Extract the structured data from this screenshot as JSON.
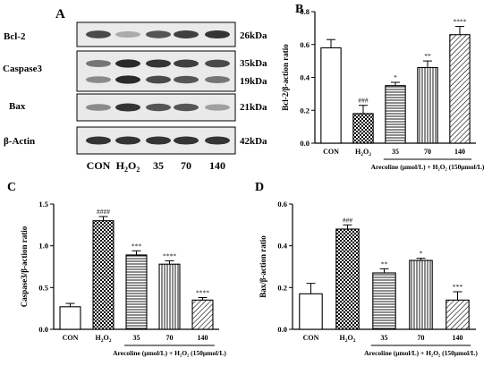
{
  "panel_a": {
    "letter": "A",
    "bands": [
      {
        "label": "Bcl-2",
        "size": "26kDa",
        "rows": 1
      },
      {
        "label": "Caspase3",
        "sizes": [
          "35kDa",
          "19kDa"
        ],
        "rows": 2
      },
      {
        "label": "Bax",
        "size": "21kDa",
        "rows": 1
      },
      {
        "label": "β-Actin",
        "size": "42kDa",
        "rows": 1
      }
    ],
    "lanes": [
      {
        "main": "CON",
        "sub": ""
      },
      {
        "main": "H",
        "sub": "2",
        "mid": "O",
        "sub2": "2"
      },
      {
        "main": "35"
      },
      {
        "main": "70"
      },
      {
        "main": "140"
      }
    ],
    "lane_positions": [
      110,
      143,
      177,
      208,
      243
    ],
    "intensity": {
      "bcl2": [
        0.75,
        0.3,
        0.7,
        0.8,
        0.85
      ],
      "casp35": [
        0.55,
        0.9,
        0.85,
        0.8,
        0.75
      ],
      "casp19": [
        0.45,
        0.9,
        0.75,
        0.7,
        0.55
      ],
      "bax": [
        0.45,
        0.85,
        0.7,
        0.7,
        0.35
      ],
      "actin": [
        0.85,
        0.85,
        0.85,
        0.85,
        0.85
      ]
    }
  },
  "chart_data": [
    {
      "panel": "B",
      "type": "bar",
      "ylabel": "Bcl-2/β-action ratio",
      "ylim": [
        0,
        0.8
      ],
      "yticks": [
        "0.0",
        "0.2",
        "0.4",
        "0.6",
        "0.8"
      ],
      "categories": [
        "CON",
        "H2O2",
        "35",
        "70",
        "140"
      ],
      "values": [
        0.58,
        0.18,
        0.35,
        0.46,
        0.66
      ],
      "errors": [
        0.05,
        0.05,
        0.02,
        0.04,
        0.05
      ],
      "sig": [
        "",
        "###",
        "*",
        "**",
        "****"
      ],
      "xnote": "Arecoline (μmol/L) + H₂O₂ (150μmol/L)"
    },
    {
      "panel": "C",
      "type": "bar",
      "ylabel": "Caspase3/β-action ratio",
      "ylim": [
        0,
        1.5
      ],
      "yticks": [
        "0.0",
        "0.5",
        "1.0",
        "1.5"
      ],
      "categories": [
        "CON",
        "H2O2",
        "35",
        "70",
        "140"
      ],
      "values": [
        0.27,
        1.3,
        0.89,
        0.78,
        0.35
      ],
      "errors": [
        0.04,
        0.05,
        0.05,
        0.04,
        0.03
      ],
      "sig": [
        "",
        "####",
        "***",
        "****",
        "****"
      ],
      "xnote": "Arecoline (μmol/L) + H₂O₂ (150μmol/L)"
    },
    {
      "panel": "D",
      "type": "bar",
      "ylabel": "Bax/β-action ratio",
      "ylim": [
        0,
        0.6
      ],
      "yticks": [
        "0.0",
        "0.2",
        "0.4",
        "0.6"
      ],
      "categories": [
        "CON",
        "H2O2",
        "35",
        "70",
        "140"
      ],
      "values": [
        0.17,
        0.48,
        0.27,
        0.33,
        0.14
      ],
      "errors": [
        0.05,
        0.02,
        0.02,
        0.01,
        0.04
      ],
      "sig": [
        "",
        "###",
        "**",
        "*",
        "***"
      ],
      "xnote": "Arecoline (μmol/L) + H₂O₂ (150μmol/L)"
    }
  ],
  "panel_letters": {
    "b": "B",
    "c": "C",
    "d": "D"
  },
  "patterns": [
    "none",
    "checker",
    "horizontal",
    "vertical",
    "diagonal"
  ]
}
